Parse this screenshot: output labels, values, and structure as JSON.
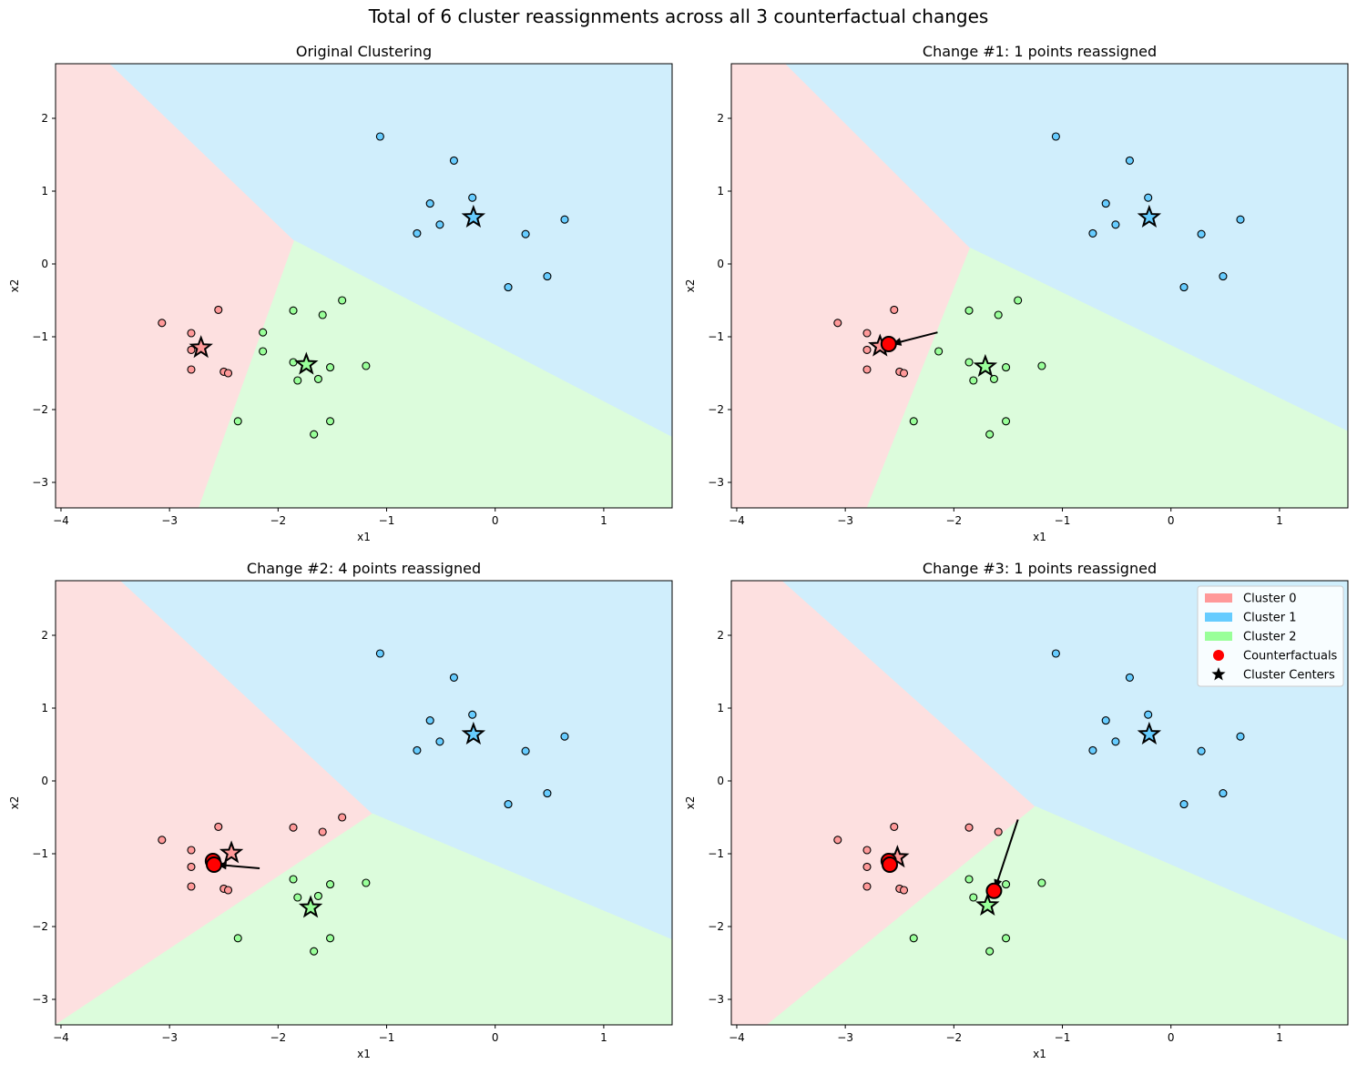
{
  "suptitle": "Total of 6 cluster reassignments across all 3 counterfactual changes",
  "colors": {
    "cluster_0": "#ff9999",
    "cluster_1": "#66ccff",
    "cluster_2": "#99ff99",
    "region_0": "#fde0e0",
    "region_1": "#d0eefc",
    "region_2": "#dcfcdc",
    "counterfactual": "#ff0000"
  },
  "legend": [
    "Cluster 0",
    "Cluster 1",
    "Cluster 2",
    "Counterfactuals",
    "Cluster Centers"
  ],
  "chart_data": [
    {
      "type": "scatter",
      "title": "Original Clustering",
      "xlabel": "x1",
      "ylabel": "x2",
      "xlim": [
        -4.05,
        1.63
      ],
      "ylim": [
        -3.35,
        2.75
      ],
      "xticks": [
        -4,
        -3,
        -2,
        -1,
        0,
        1
      ],
      "yticks": [
        -3,
        -2,
        -1,
        0,
        1,
        2
      ],
      "regions": [
        {
          "cluster": 0,
          "polygon": [
            [
              -4.05,
              2.75
            ],
            [
              -3.55,
              2.75
            ],
            [
              -1.85,
              0.32
            ],
            [
              -2.73,
              -3.35
            ],
            [
              -4.05,
              -3.35
            ]
          ]
        },
        {
          "cluster": 1,
          "polygon": [
            [
              -3.55,
              2.75
            ],
            [
              1.63,
              2.75
            ],
            [
              1.63,
              -2.38
            ],
            [
              -1.85,
              0.32
            ]
          ]
        },
        {
          "cluster": 2,
          "polygon": [
            [
              -1.85,
              0.32
            ],
            [
              1.63,
              -2.38
            ],
            [
              1.63,
              -3.35
            ],
            [
              -2.73,
              -3.35
            ]
          ]
        }
      ],
      "points": [
        {
          "x": -3.07,
          "y": -0.81,
          "cluster": 0
        },
        {
          "x": -2.8,
          "y": -0.95,
          "cluster": 0
        },
        {
          "x": -2.8,
          "y": -1.18,
          "cluster": 0
        },
        {
          "x": -2.8,
          "y": -1.45,
          "cluster": 0
        },
        {
          "x": -2.55,
          "y": -0.63,
          "cluster": 0
        },
        {
          "x": -2.5,
          "y": -1.48,
          "cluster": 0
        },
        {
          "x": -2.46,
          "y": -1.5,
          "cluster": 0
        },
        {
          "x": -1.06,
          "y": 1.75,
          "cluster": 1
        },
        {
          "x": -0.38,
          "y": 1.42,
          "cluster": 1
        },
        {
          "x": -0.6,
          "y": 0.83,
          "cluster": 1
        },
        {
          "x": -0.21,
          "y": 0.91,
          "cluster": 1
        },
        {
          "x": -0.72,
          "y": 0.42,
          "cluster": 1
        },
        {
          "x": -0.51,
          "y": 0.54,
          "cluster": 1
        },
        {
          "x": 0.28,
          "y": 0.41,
          "cluster": 1
        },
        {
          "x": 0.64,
          "y": 0.61,
          "cluster": 1
        },
        {
          "x": 0.12,
          "y": -0.32,
          "cluster": 1
        },
        {
          "x": 0.48,
          "y": -0.17,
          "cluster": 1
        },
        {
          "x": -1.86,
          "y": -0.64,
          "cluster": 2
        },
        {
          "x": -1.59,
          "y": -0.7,
          "cluster": 2
        },
        {
          "x": -1.41,
          "y": -0.5,
          "cluster": 2
        },
        {
          "x": -2.14,
          "y": -0.94,
          "cluster": 2
        },
        {
          "x": -2.14,
          "y": -1.2,
          "cluster": 2
        },
        {
          "x": -1.86,
          "y": -1.35,
          "cluster": 2
        },
        {
          "x": -1.82,
          "y": -1.6,
          "cluster": 2
        },
        {
          "x": -1.63,
          "y": -1.58,
          "cluster": 2
        },
        {
          "x": -1.52,
          "y": -1.42,
          "cluster": 2
        },
        {
          "x": -1.19,
          "y": -1.4,
          "cluster": 2
        },
        {
          "x": -2.37,
          "y": -2.16,
          "cluster": 2
        },
        {
          "x": -1.52,
          "y": -2.16,
          "cluster": 2
        },
        {
          "x": -1.67,
          "y": -2.34,
          "cluster": 2
        }
      ],
      "centers": [
        {
          "x": -2.71,
          "y": -1.15,
          "cluster": 0
        },
        {
          "x": -0.2,
          "y": 0.64,
          "cluster": 1
        },
        {
          "x": -1.74,
          "y": -1.38,
          "cluster": 2
        }
      ],
      "counterfactuals": [],
      "arrows": []
    },
    {
      "type": "scatter",
      "title": "Change #1: 1 points reassigned",
      "xlabel": "x1",
      "ylabel": "x2",
      "xlim": [
        -4.05,
        1.63
      ],
      "ylim": [
        -3.35,
        2.75
      ],
      "xticks": [
        -4,
        -3,
        -2,
        -1,
        0,
        1
      ],
      "yticks": [
        -3,
        -2,
        -1,
        0,
        1,
        2
      ],
      "regions": [
        {
          "cluster": 0,
          "polygon": [
            [
              -4.05,
              2.75
            ],
            [
              -3.55,
              2.75
            ],
            [
              -1.85,
              0.22
            ],
            [
              -2.8,
              -3.35
            ],
            [
              -4.05,
              -3.35
            ]
          ]
        },
        {
          "cluster": 1,
          "polygon": [
            [
              -3.55,
              2.75
            ],
            [
              1.63,
              2.75
            ],
            [
              1.63,
              -2.3
            ],
            [
              -1.85,
              0.22
            ]
          ]
        },
        {
          "cluster": 2,
          "polygon": [
            [
              -1.85,
              0.22
            ],
            [
              1.63,
              -2.3
            ],
            [
              1.63,
              -3.35
            ],
            [
              -2.8,
              -3.35
            ]
          ]
        }
      ],
      "points": [
        {
          "x": -3.07,
          "y": -0.81,
          "cluster": 0
        },
        {
          "x": -2.8,
          "y": -0.95,
          "cluster": 0
        },
        {
          "x": -2.8,
          "y": -1.18,
          "cluster": 0
        },
        {
          "x": -2.8,
          "y": -1.45,
          "cluster": 0
        },
        {
          "x": -2.55,
          "y": -0.63,
          "cluster": 0
        },
        {
          "x": -2.5,
          "y": -1.48,
          "cluster": 0
        },
        {
          "x": -2.46,
          "y": -1.5,
          "cluster": 0
        },
        {
          "x": -1.06,
          "y": 1.75,
          "cluster": 1
        },
        {
          "x": -0.38,
          "y": 1.42,
          "cluster": 1
        },
        {
          "x": -0.6,
          "y": 0.83,
          "cluster": 1
        },
        {
          "x": -0.21,
          "y": 0.91,
          "cluster": 1
        },
        {
          "x": -0.72,
          "y": 0.42,
          "cluster": 1
        },
        {
          "x": -0.51,
          "y": 0.54,
          "cluster": 1
        },
        {
          "x": 0.28,
          "y": 0.41,
          "cluster": 1
        },
        {
          "x": 0.64,
          "y": 0.61,
          "cluster": 1
        },
        {
          "x": 0.12,
          "y": -0.32,
          "cluster": 1
        },
        {
          "x": 0.48,
          "y": -0.17,
          "cluster": 1
        },
        {
          "x": -1.86,
          "y": -0.64,
          "cluster": 2
        },
        {
          "x": -1.59,
          "y": -0.7,
          "cluster": 2
        },
        {
          "x": -1.41,
          "y": -0.5,
          "cluster": 2
        },
        {
          "x": -2.14,
          "y": -1.2,
          "cluster": 2
        },
        {
          "x": -1.86,
          "y": -1.35,
          "cluster": 2
        },
        {
          "x": -1.82,
          "y": -1.6,
          "cluster": 2
        },
        {
          "x": -1.63,
          "y": -1.58,
          "cluster": 2
        },
        {
          "x": -1.52,
          "y": -1.42,
          "cluster": 2
        },
        {
          "x": -1.19,
          "y": -1.4,
          "cluster": 2
        },
        {
          "x": -2.37,
          "y": -2.16,
          "cluster": 2
        },
        {
          "x": -1.52,
          "y": -2.16,
          "cluster": 2
        },
        {
          "x": -1.67,
          "y": -2.34,
          "cluster": 2
        }
      ],
      "centers": [
        {
          "x": -2.68,
          "y": -1.13,
          "cluster": 0
        },
        {
          "x": -0.2,
          "y": 0.64,
          "cluster": 1
        },
        {
          "x": -1.71,
          "y": -1.41,
          "cluster": 2
        }
      ],
      "counterfactuals": [
        {
          "x": -2.6,
          "y": -1.1
        }
      ],
      "arrows": [
        {
          "from": [
            -2.15,
            -0.94
          ],
          "to": [
            -2.57,
            -1.1
          ]
        }
      ]
    },
    {
      "type": "scatter",
      "title": "Change #2: 4 points reassigned",
      "xlabel": "x1",
      "ylabel": "x2",
      "xlim": [
        -4.05,
        1.63
      ],
      "ylim": [
        -3.35,
        2.75
      ],
      "xticks": [
        -4,
        -3,
        -2,
        -1,
        0,
        1
      ],
      "yticks": [
        -3,
        -2,
        -1,
        0,
        1,
        2
      ],
      "regions": [
        {
          "cluster": 0,
          "polygon": [
            [
              -4.05,
              2.75
            ],
            [
              -3.45,
              2.75
            ],
            [
              -1.13,
              -0.45
            ],
            [
              -4.05,
              -3.35
            ]
          ]
        },
        {
          "cluster": 1,
          "polygon": [
            [
              -3.45,
              2.75
            ],
            [
              1.63,
              2.75
            ],
            [
              1.63,
              -2.18
            ],
            [
              -1.13,
              -0.45
            ]
          ]
        },
        {
          "cluster": 2,
          "polygon": [
            [
              -1.13,
              -0.45
            ],
            [
              1.63,
              -2.18
            ],
            [
              1.63,
              -3.35
            ],
            [
              -4.05,
              -3.35
            ]
          ]
        }
      ],
      "points": [
        {
          "x": -3.07,
          "y": -0.81,
          "cluster": 0
        },
        {
          "x": -2.8,
          "y": -0.95,
          "cluster": 0
        },
        {
          "x": -2.8,
          "y": -1.18,
          "cluster": 0
        },
        {
          "x": -2.8,
          "y": -1.45,
          "cluster": 0
        },
        {
          "x": -2.55,
          "y": -0.63,
          "cluster": 0
        },
        {
          "x": -2.5,
          "y": -1.48,
          "cluster": 0
        },
        {
          "x": -2.46,
          "y": -1.5,
          "cluster": 0
        },
        {
          "x": -1.86,
          "y": -0.64,
          "cluster": 0
        },
        {
          "x": -1.59,
          "y": -0.7,
          "cluster": 0
        },
        {
          "x": -1.41,
          "y": -0.5,
          "cluster": 0
        },
        {
          "x": -1.06,
          "y": 1.75,
          "cluster": 1
        },
        {
          "x": -0.38,
          "y": 1.42,
          "cluster": 1
        },
        {
          "x": -0.6,
          "y": 0.83,
          "cluster": 1
        },
        {
          "x": -0.21,
          "y": 0.91,
          "cluster": 1
        },
        {
          "x": -0.72,
          "y": 0.42,
          "cluster": 1
        },
        {
          "x": -0.51,
          "y": 0.54,
          "cluster": 1
        },
        {
          "x": 0.28,
          "y": 0.41,
          "cluster": 1
        },
        {
          "x": 0.64,
          "y": 0.61,
          "cluster": 1
        },
        {
          "x": 0.12,
          "y": -0.32,
          "cluster": 1
        },
        {
          "x": 0.48,
          "y": -0.17,
          "cluster": 1
        },
        {
          "x": -1.86,
          "y": -1.35,
          "cluster": 2
        },
        {
          "x": -1.82,
          "y": -1.6,
          "cluster": 2
        },
        {
          "x": -1.63,
          "y": -1.58,
          "cluster": 2
        },
        {
          "x": -1.52,
          "y": -1.42,
          "cluster": 2
        },
        {
          "x": -1.19,
          "y": -1.4,
          "cluster": 2
        },
        {
          "x": -2.37,
          "y": -2.16,
          "cluster": 2
        },
        {
          "x": -1.52,
          "y": -2.16,
          "cluster": 2
        },
        {
          "x": -1.67,
          "y": -2.34,
          "cluster": 2
        }
      ],
      "centers": [
        {
          "x": -2.43,
          "y": -0.99,
          "cluster": 0
        },
        {
          "x": -0.2,
          "y": 0.64,
          "cluster": 1
        },
        {
          "x": -1.7,
          "y": -1.74,
          "cluster": 2
        }
      ],
      "counterfactuals": [
        {
          "x": -2.6,
          "y": -1.1
        },
        {
          "x": -2.59,
          "y": -1.15
        }
      ],
      "arrows": [
        {
          "from": [
            -2.17,
            -1.2
          ],
          "to": [
            -2.56,
            -1.15
          ]
        }
      ]
    },
    {
      "type": "scatter",
      "title": "Change #3: 1 points reassigned",
      "xlabel": "x1",
      "ylabel": "x2",
      "xlim": [
        -4.05,
        1.63
      ],
      "ylim": [
        -3.35,
        2.75
      ],
      "xticks": [
        -4,
        -3,
        -2,
        -1,
        0,
        1
      ],
      "yticks": [
        -3,
        -2,
        -1,
        0,
        1,
        2
      ],
      "legend_loc": "upper right",
      "regions": [
        {
          "cluster": 0,
          "polygon": [
            [
              -4.05,
              2.75
            ],
            [
              -3.58,
              2.75
            ],
            [
              -1.25,
              -0.35
            ],
            [
              -3.72,
              -3.35
            ],
            [
              -4.05,
              -3.35
            ]
          ]
        },
        {
          "cluster": 1,
          "polygon": [
            [
              -3.58,
              2.75
            ],
            [
              1.63,
              2.75
            ],
            [
              1.63,
              -2.2
            ],
            [
              -1.25,
              -0.35
            ]
          ]
        },
        {
          "cluster": 2,
          "polygon": [
            [
              -1.25,
              -0.35
            ],
            [
              1.63,
              -2.2
            ],
            [
              1.63,
              -3.35
            ],
            [
              -3.72,
              -3.35
            ]
          ]
        }
      ],
      "points": [
        {
          "x": -3.07,
          "y": -0.81,
          "cluster": 0
        },
        {
          "x": -2.8,
          "y": -0.95,
          "cluster": 0
        },
        {
          "x": -2.8,
          "y": -1.18,
          "cluster": 0
        },
        {
          "x": -2.8,
          "y": -1.45,
          "cluster": 0
        },
        {
          "x": -2.55,
          "y": -0.63,
          "cluster": 0
        },
        {
          "x": -2.5,
          "y": -1.48,
          "cluster": 0
        },
        {
          "x": -2.46,
          "y": -1.5,
          "cluster": 0
        },
        {
          "x": -1.86,
          "y": -0.64,
          "cluster": 0
        },
        {
          "x": -1.59,
          "y": -0.7,
          "cluster": 0
        },
        {
          "x": -1.06,
          "y": 1.75,
          "cluster": 1
        },
        {
          "x": -0.38,
          "y": 1.42,
          "cluster": 1
        },
        {
          "x": -0.6,
          "y": 0.83,
          "cluster": 1
        },
        {
          "x": -0.21,
          "y": 0.91,
          "cluster": 1
        },
        {
          "x": -0.72,
          "y": 0.42,
          "cluster": 1
        },
        {
          "x": -0.51,
          "y": 0.54,
          "cluster": 1
        },
        {
          "x": 0.28,
          "y": 0.41,
          "cluster": 1
        },
        {
          "x": 0.64,
          "y": 0.61,
          "cluster": 1
        },
        {
          "x": 0.12,
          "y": -0.32,
          "cluster": 1
        },
        {
          "x": 0.48,
          "y": -0.17,
          "cluster": 1
        },
        {
          "x": -1.86,
          "y": -1.35,
          "cluster": 2
        },
        {
          "x": -1.82,
          "y": -1.6,
          "cluster": 2
        },
        {
          "x": -1.52,
          "y": -1.42,
          "cluster": 2
        },
        {
          "x": -1.19,
          "y": -1.4,
          "cluster": 2
        },
        {
          "x": -2.37,
          "y": -2.16,
          "cluster": 2
        },
        {
          "x": -1.52,
          "y": -2.16,
          "cluster": 2
        },
        {
          "x": -1.67,
          "y": -2.34,
          "cluster": 2
        }
      ],
      "centers": [
        {
          "x": -2.52,
          "y": -1.05,
          "cluster": 0
        },
        {
          "x": -0.2,
          "y": 0.64,
          "cluster": 1
        },
        {
          "x": -1.69,
          "y": -1.71,
          "cluster": 2
        }
      ],
      "counterfactuals": [
        {
          "x": -2.6,
          "y": -1.1
        },
        {
          "x": -2.59,
          "y": -1.15
        },
        {
          "x": -1.63,
          "y": -1.51
        }
      ],
      "arrows": [
        {
          "from": [
            -1.41,
            -0.53
          ],
          "to": [
            -1.62,
            -1.48
          ]
        }
      ]
    }
  ]
}
